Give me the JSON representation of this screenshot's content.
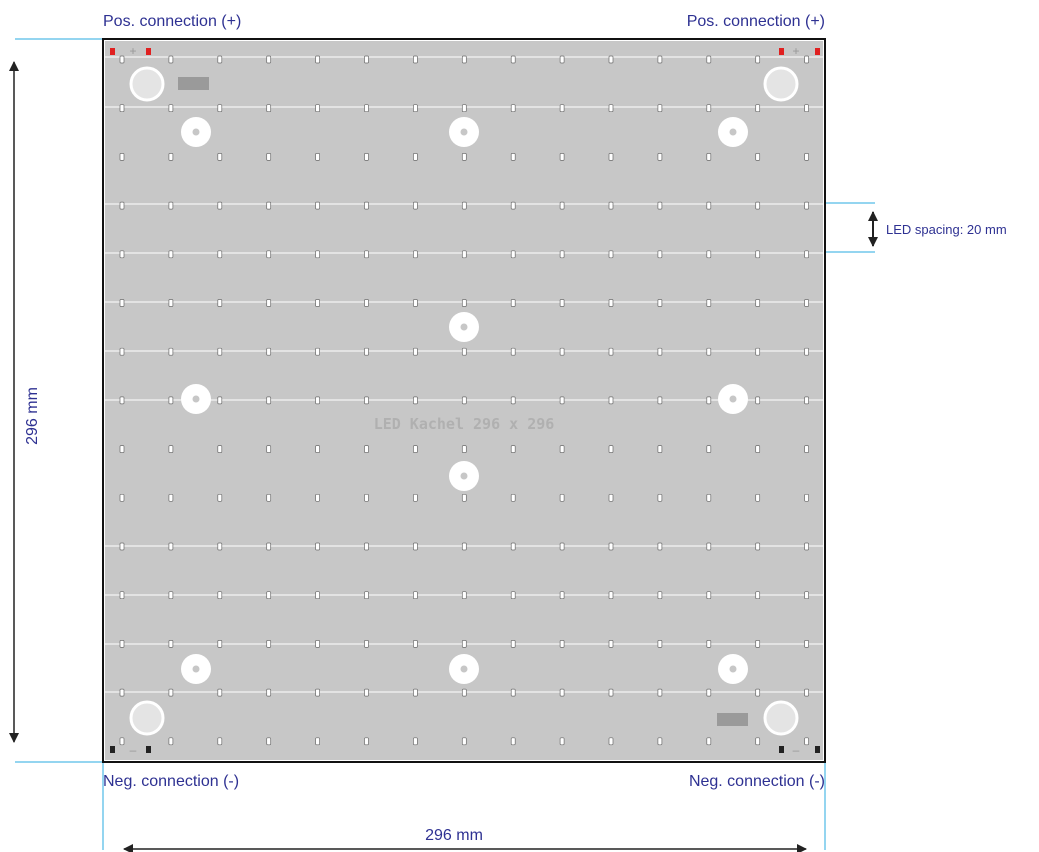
{
  "labels": {
    "pos_left": "Pos. connection (+)",
    "pos_right": "Pos. connection (+)",
    "neg_left": "Neg. connection (-)",
    "neg_right": "Neg. connection (-)",
    "height": "296 mm",
    "width": "296 mm",
    "spacing": "LED spacing: 20 mm",
    "board": "LED Kachel 296 x 296",
    "plus": "+",
    "minus": "–"
  },
  "colors": {
    "board": "#c7c7c7",
    "label_text": "#2e3192",
    "dimension_line": "#29abe2",
    "led": "#ffffff",
    "terminal_pos": "#e02020",
    "terminal_neg": "#222222"
  }
}
